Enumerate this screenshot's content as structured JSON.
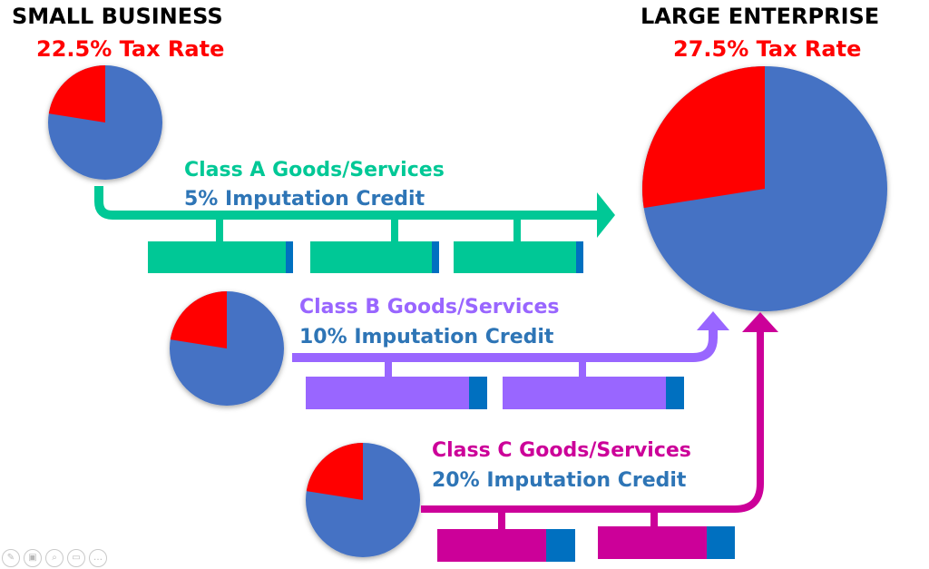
{
  "small_business": {
    "title": "SMALL BUSINESS",
    "rate_label": "22.5% Tax Rate",
    "rate_value": 22.5
  },
  "large_enterprise": {
    "title": "LARGE ENTERPRISE",
    "rate_label": "27.5% Tax Rate",
    "rate_value": 27.5
  },
  "class_a": {
    "title": "Class A Goods/Services",
    "credit_label": "5% Imputation Credit",
    "credit_value": 5
  },
  "class_b": {
    "title": "Class B Goods/Services",
    "credit_label": "10% Imputation Credit",
    "credit_value": 10
  },
  "class_c": {
    "title": "Class C Goods/Services",
    "credit_label": "20% Imputation Credit",
    "credit_value": 20
  },
  "colors": {
    "pie_main": "#4472C4",
    "pie_slice": "#FF0000",
    "class_a": "#00C896",
    "class_b": "#9966FF",
    "class_c": "#CC0099",
    "credit": "#0070C0",
    "title_red": "#FF0000",
    "credit_text": "#2E75B6"
  },
  "controls": [
    "pointer-icon",
    "slides-icon",
    "zoom-icon",
    "subtitles-icon",
    "more-icon"
  ]
}
